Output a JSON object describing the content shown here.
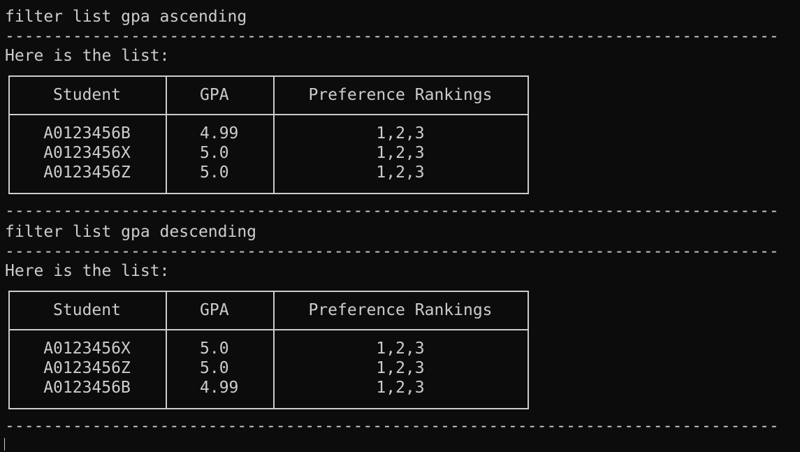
{
  "separator": "--------------------------------------------------------------------------------",
  "blocks": [
    {
      "command": "filter list gpa ascending",
      "message": "Here is the list:",
      "table": {
        "headers": [
          "Student",
          "GPA",
          "Preference Rankings"
        ],
        "rows": [
          [
            "A0123456B",
            "4.99",
            "1,2,3"
          ],
          [
            "A0123456X",
            "5.0",
            "1,2,3"
          ],
          [
            "A0123456Z",
            "5.0",
            "1,2,3"
          ]
        ]
      }
    },
    {
      "command": "filter list gpa descending",
      "message": "Here is the list:",
      "table": {
        "headers": [
          "Student",
          "GPA",
          "Preference Rankings"
        ],
        "rows": [
          [
            "A0123456X",
            "5.0",
            "1,2,3"
          ],
          [
            "A0123456Z",
            "5.0",
            "1,2,3"
          ],
          [
            "A0123456B",
            "4.99",
            "1,2,3"
          ]
        ]
      }
    }
  ]
}
